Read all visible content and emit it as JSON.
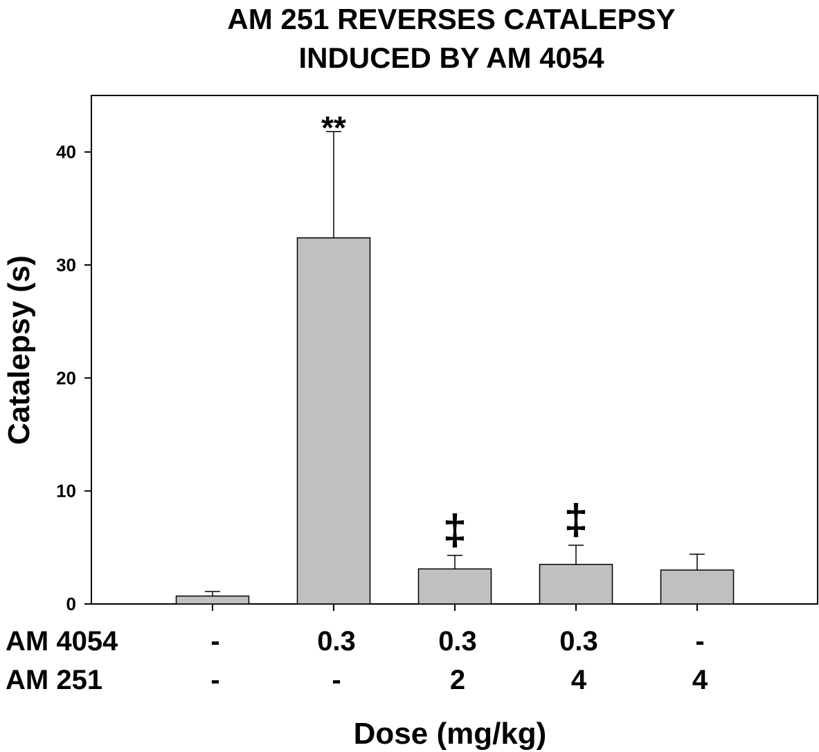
{
  "chart_data": {
    "type": "bar",
    "title": [
      "AM 251 REVERSES CATALEPSY",
      "INDUCED BY AM 4054"
    ],
    "xlabel": "Dose (mg/kg)",
    "ylabel": "Catalepsy (s)",
    "ylim": [
      0,
      45
    ],
    "yticks": [
      0,
      10,
      20,
      30,
      40
    ],
    "grid": false,
    "legend": "none",
    "bar_color": "#c0c0c0",
    "row_labels": [
      "AM 4054",
      "AM 251"
    ],
    "groups": [
      {
        "am4054": "-",
        "am251": "-",
        "value": 0.7,
        "error": 0.4,
        "annotation": ""
      },
      {
        "am4054": "0.3",
        "am251": "-",
        "value": 32.4,
        "error": 9.4,
        "annotation": "**"
      },
      {
        "am4054": "0.3",
        "am251": "2",
        "value": 3.1,
        "error": 1.2,
        "annotation": "‡"
      },
      {
        "am4054": "0.3",
        "am251": "4",
        "value": 3.5,
        "error": 1.7,
        "annotation": "‡"
      },
      {
        "am4054": "-",
        "am251": "4",
        "value": 3.0,
        "error": 1.4,
        "annotation": ""
      }
    ]
  }
}
